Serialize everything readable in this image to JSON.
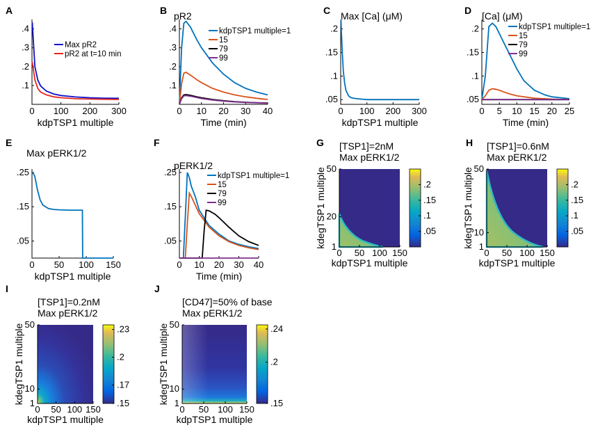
{
  "colors": {
    "blue": "#0072BD",
    "orange": "#D95319",
    "black": "#000000",
    "purple": "#7E2F8E",
    "navy": "#1010C8",
    "red": "#E8251E"
  },
  "chart_data": [
    {
      "id": "A",
      "type": "line",
      "letter": "A",
      "xlabel": "kdpTSP1 multiple",
      "ylabel": "",
      "title": "",
      "xlim": [
        0,
        300
      ],
      "ylim": [
        0,
        0.45
      ],
      "xticks": [
        0,
        100,
        200,
        300
      ],
      "yticks": [
        0.1,
        0.2,
        0.3,
        0.4
      ],
      "legend": [
        "Max pR2",
        "pR2 at t=10 min"
      ],
      "series": [
        {
          "name": "Max pR2",
          "color": "navy",
          "x": [
            1,
            10,
            20,
            30,
            50,
            75,
            100,
            150,
            200,
            250,
            300
          ],
          "values": [
            0.435,
            0.2,
            0.13,
            0.097,
            0.07,
            0.055,
            0.047,
            0.039,
            0.035,
            0.033,
            0.032
          ]
        },
        {
          "name": "pR2 at t=10 min",
          "color": "red",
          "x": [
            1,
            10,
            20,
            30,
            50,
            75,
            100,
            150,
            200,
            250,
            300
          ],
          "values": [
            0.225,
            0.13,
            0.085,
            0.065,
            0.05,
            0.04,
            0.035,
            0.03,
            0.028,
            0.027,
            0.026
          ]
        }
      ]
    },
    {
      "id": "B",
      "type": "line",
      "letter": "B",
      "xlabel": "Time (min)",
      "ylabel": "",
      "title": "pR2",
      "xlim": [
        0,
        40
      ],
      "ylim": [
        0,
        0.45
      ],
      "xticks": [
        0,
        10,
        20,
        30,
        40
      ],
      "yticks": [
        0.1,
        0.2,
        0.3,
        0.4
      ],
      "legend": [
        "kdpTSP1 multiple=1",
        "15",
        "79",
        "99"
      ],
      "series": [
        {
          "name": "kdpTSP1 multiple=1",
          "color": "blue",
          "x": [
            0,
            1,
            2,
            3,
            5,
            8,
            10,
            15,
            20,
            25,
            30,
            35,
            40
          ],
          "values": [
            0,
            0.3,
            0.43,
            0.44,
            0.41,
            0.34,
            0.3,
            0.22,
            0.16,
            0.115,
            0.085,
            0.065,
            0.05
          ]
        },
        {
          "name": "15",
          "color": "orange",
          "x": [
            0,
            1,
            2,
            3,
            5,
            8,
            10,
            15,
            20,
            25,
            30,
            35,
            40
          ],
          "values": [
            0,
            0.11,
            0.165,
            0.17,
            0.155,
            0.13,
            0.115,
            0.085,
            0.065,
            0.05,
            0.04,
            0.032,
            0.026
          ]
        },
        {
          "name": "79",
          "color": "black",
          "x": [
            0,
            1,
            2,
            3,
            5,
            8,
            10,
            15,
            20,
            25,
            30,
            35,
            40
          ],
          "values": [
            0,
            0.035,
            0.05,
            0.052,
            0.048,
            0.04,
            0.035,
            0.026,
            0.019,
            0.014,
            0.011,
            0.009,
            0.007
          ]
        },
        {
          "name": "99",
          "color": "purple",
          "x": [
            0,
            1,
            2,
            3,
            5,
            8,
            10,
            15,
            20,
            25,
            30,
            35,
            40
          ],
          "values": [
            0,
            0.03,
            0.045,
            0.047,
            0.043,
            0.036,
            0.031,
            0.023,
            0.017,
            0.013,
            0.01,
            0.008,
            0.006
          ]
        }
      ]
    },
    {
      "id": "C",
      "type": "line",
      "letter": "C",
      "xlabel": "kdpTSP1 multiple",
      "ylabel": "",
      "title": "Max [Ca] (μM)",
      "xlim": [
        0,
        300
      ],
      "ylim": [
        0.04,
        0.22
      ],
      "xticks": [
        0,
        100,
        200,
        300
      ],
      "yticks": [
        0.05,
        0.1,
        0.15,
        0.2
      ],
      "legend": [],
      "series": [
        {
          "name": "Max [Ca]",
          "color": "blue",
          "x": [
            1,
            3,
            6,
            10,
            15,
            20,
            30,
            40,
            60,
            100,
            200,
            300
          ],
          "values": [
            0.22,
            0.19,
            0.15,
            0.11,
            0.085,
            0.07,
            0.058,
            0.054,
            0.052,
            0.05,
            0.05,
            0.05
          ]
        }
      ]
    },
    {
      "id": "D",
      "type": "line",
      "letter": "D",
      "xlabel": "Time (min)",
      "ylabel": "",
      "title": "[Ca] (μM)",
      "xlim": [
        0,
        25
      ],
      "ylim": [
        0.04,
        0.22
      ],
      "xticks": [
        0,
        5,
        10,
        15,
        20,
        25
      ],
      "yticks": [
        0.05,
        0.1,
        0.15,
        0.2
      ],
      "legend": [
        "kdpTSP1 multiple=1",
        "15",
        "79",
        "99"
      ],
      "series": [
        {
          "name": "kdpTSP1 multiple=1",
          "color": "blue",
          "x": [
            0,
            1,
            2,
            3,
            4,
            5,
            6,
            8,
            10,
            12,
            15,
            18,
            20,
            25
          ],
          "values": [
            0.05,
            0.1,
            0.205,
            0.212,
            0.205,
            0.19,
            0.175,
            0.145,
            0.115,
            0.09,
            0.07,
            0.06,
            0.056,
            0.052
          ]
        },
        {
          "name": "15",
          "color": "orange",
          "x": [
            0,
            1,
            2,
            3,
            4,
            5,
            6,
            8,
            10,
            15,
            20,
            25
          ],
          "values": [
            0.05,
            0.058,
            0.07,
            0.073,
            0.072,
            0.07,
            0.067,
            0.062,
            0.058,
            0.053,
            0.051,
            0.05
          ]
        },
        {
          "name": "79",
          "color": "black",
          "x": [
            0,
            25
          ],
          "values": [
            0.05,
            0.05
          ]
        },
        {
          "name": "99",
          "color": "purple",
          "x": [
            0,
            25
          ],
          "values": [
            0.05,
            0.05
          ]
        }
      ]
    },
    {
      "id": "E",
      "type": "line",
      "letter": "E",
      "xlabel": "kdpTSP1 multiple",
      "ylabel": "",
      "title": "Max pERK1/2",
      "xlim": [
        0,
        150
      ],
      "ylim": [
        0,
        0.26
      ],
      "xticks": [
        0,
        50,
        100,
        150
      ],
      "yticks": [
        0.05,
        0.15,
        0.25
      ],
      "legend": [],
      "series": [
        {
          "name": "Max pERK1/2",
          "color": "blue",
          "x": [
            1,
            5,
            10,
            15,
            20,
            30,
            40,
            50,
            70,
            93,
            93.5,
            100,
            150
          ],
          "values": [
            0.25,
            0.24,
            0.2,
            0.17,
            0.155,
            0.145,
            0.142,
            0.141,
            0.14,
            0.14,
            0,
            0,
            0
          ]
        }
      ]
    },
    {
      "id": "F",
      "type": "line",
      "letter": "F",
      "xlabel": "Time (min)",
      "ylabel": "",
      "title": "pERK1/2",
      "xlim": [
        0,
        40
      ],
      "ylim": [
        0,
        0.26
      ],
      "xticks": [
        0,
        10,
        20,
        30,
        40
      ],
      "yticks": [
        0.05,
        0.15,
        0.25
      ],
      "legend": [
        "kdpTSP1 multiple=1",
        "15",
        "79",
        "99"
      ],
      "series": [
        {
          "name": "kdpTSP1 multiple=1",
          "color": "blue",
          "x": [
            0,
            2,
            3,
            4,
            5,
            6,
            8,
            10,
            15,
            20,
            25,
            30,
            35,
            40
          ],
          "values": [
            0,
            0,
            0.12,
            0.25,
            0.235,
            0.21,
            0.18,
            0.14,
            0.095,
            0.07,
            0.05,
            0.04,
            0.033,
            0.028
          ]
        },
        {
          "name": "15",
          "color": "orange",
          "x": [
            0,
            3,
            4,
            5,
            6,
            8,
            10,
            15,
            20,
            25,
            30,
            35,
            40
          ],
          "values": [
            0,
            0,
            0.1,
            0.19,
            0.18,
            0.155,
            0.13,
            0.09,
            0.065,
            0.048,
            0.037,
            0.03,
            0.025
          ]
        },
        {
          "name": "79",
          "color": "black",
          "x": [
            0,
            11.5,
            12.5,
            13.5,
            15,
            18,
            20,
            25,
            30,
            35,
            40
          ],
          "values": [
            0,
            0,
            0.08,
            0.14,
            0.138,
            0.128,
            0.118,
            0.09,
            0.065,
            0.048,
            0.037
          ]
        },
        {
          "name": "99",
          "color": "purple",
          "x": [
            0,
            40
          ],
          "values": [
            0,
            0
          ]
        }
      ]
    },
    {
      "id": "G",
      "type": "heatmap",
      "letter": "G",
      "xlabel": "kdpTSP1 multiple",
      "ylabel": "kdegTSP1 multiple",
      "title": "[TSP1]=2nM",
      "subtitle": "Max pERK1/2",
      "xlim": [
        0,
        150
      ],
      "ylim": [
        1,
        50
      ],
      "xticks": [
        0,
        50,
        100,
        150
      ],
      "yticks": [
        1,
        20,
        50
      ],
      "colorbar_ticks": [
        0.05,
        0.1,
        0.15,
        0.2
      ],
      "colorbar_range": [
        0,
        0.25
      ]
    },
    {
      "id": "H",
      "type": "heatmap",
      "letter": "H",
      "xlabel": "kdpTSP1 multiple",
      "ylabel": "kdegTSP1 multiple",
      "title": "[TSP1]=0.6nM",
      "subtitle": "Max pERK1/2",
      "xlim": [
        0,
        150
      ],
      "ylim": [
        1,
        50
      ],
      "xticks": [
        0,
        50,
        100,
        150
      ],
      "yticks": [
        1,
        10,
        50
      ],
      "colorbar_ticks": [
        0.05,
        0.1,
        0.15,
        0.2
      ],
      "colorbar_range": [
        0,
        0.25
      ]
    },
    {
      "id": "I",
      "type": "heatmap",
      "letter": "I",
      "xlabel": "kdpTSP1 multiple",
      "ylabel": "kdegTSP1 multiple",
      "title": "[TSP1]=0.2nM",
      "subtitle": "Max pERK1/2",
      "xlim": [
        0,
        150
      ],
      "ylim": [
        1,
        50
      ],
      "xticks": [
        0,
        50,
        100,
        150
      ],
      "yticks": [
        1,
        10,
        50
      ],
      "colorbar_ticks": [
        0.15,
        0.17,
        0.2,
        0.23
      ],
      "colorbar_range": [
        0.15,
        0.235
      ]
    },
    {
      "id": "J",
      "type": "heatmap",
      "letter": "J",
      "xlabel": "kdpTSP1 multiple",
      "ylabel": "kdegTSP1 multiple",
      "title": "[CD47]=50% of base",
      "subtitle": "Max pERK1/2",
      "xlim": [
        0,
        150
      ],
      "ylim": [
        1,
        50
      ],
      "xticks": [
        0,
        50,
        100,
        150
      ],
      "yticks": [
        1,
        10,
        50
      ],
      "colorbar_ticks": [
        0.15,
        0.2,
        0.24
      ],
      "colorbar_range": [
        0.15,
        0.245
      ]
    }
  ]
}
